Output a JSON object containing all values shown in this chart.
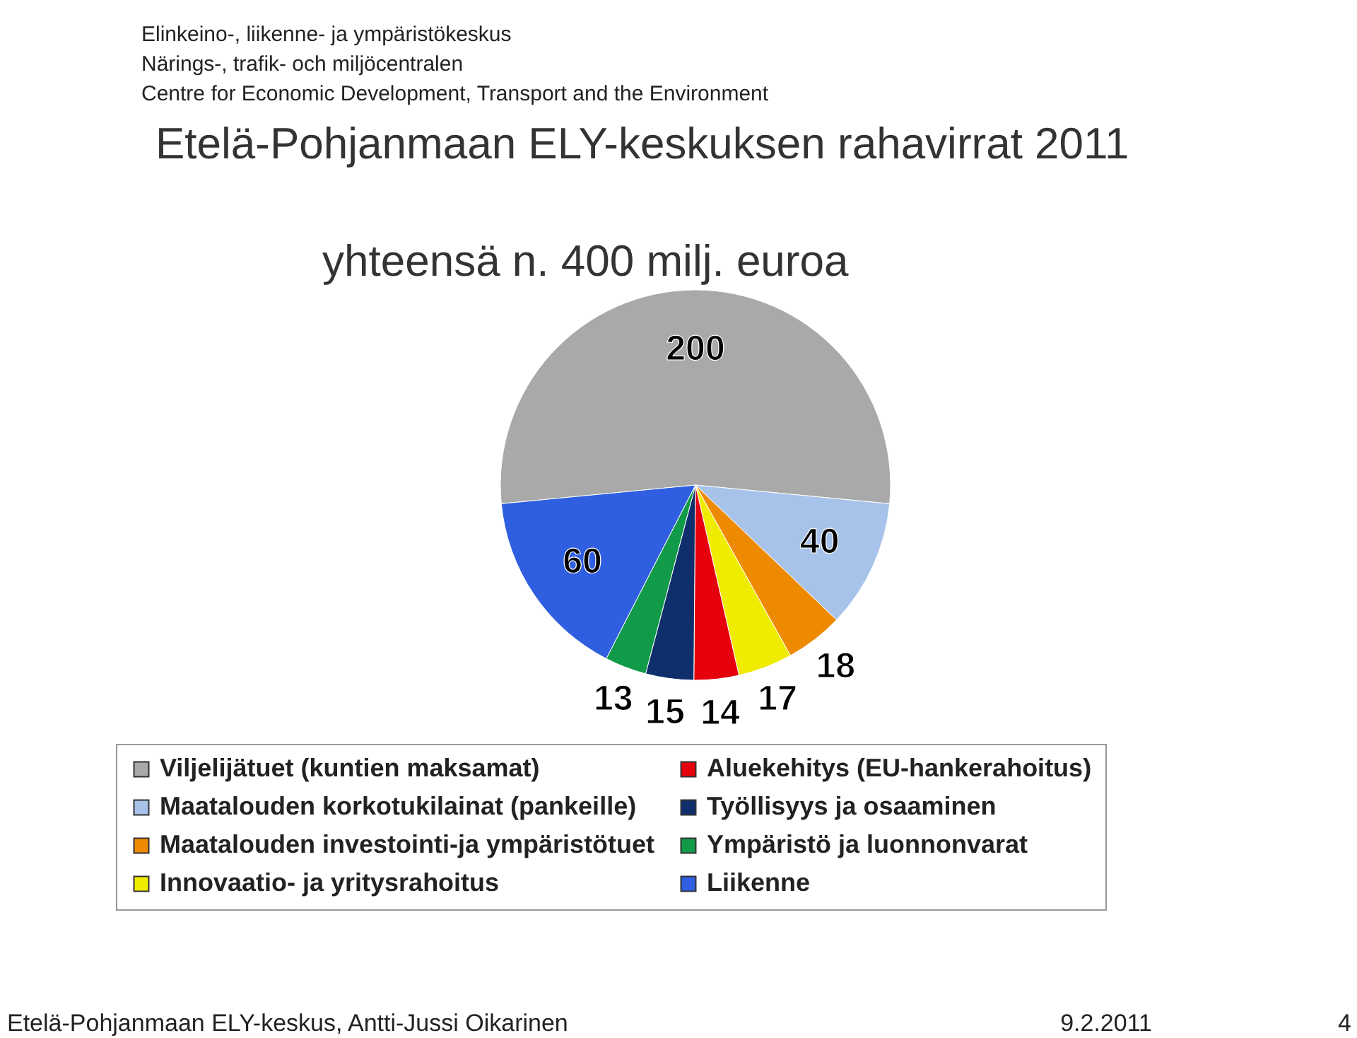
{
  "chart_data": {
    "type": "pie",
    "title": "Etelä-Pohjanmaan ELY-keskuksen rahavirrat 2011",
    "subtitle": "yhteensä n. 400 milj. euroa",
    "categories": [
      "Viljelijätuet (kuntien maksamat)",
      "Maatalouden korkotukilainat (pankeille)",
      "Maatalouden investointi-ja ympäristötuet",
      "Innovaatio- ja yritysrahoitus",
      "Aluekehitys (EU-hankerahoitus)",
      "Työllisyys ja osaaminen",
      "Ympäristö ja luonnonvarat",
      "Liikenne"
    ],
    "values": [
      200,
      40,
      18,
      17,
      14,
      15,
      13,
      60
    ],
    "colors": [
      "#a9a9a9",
      "#a7c3ea",
      "#ee8a00",
      "#f0ec00",
      "#e5000c",
      "#0e2f6c",
      "#119a48",
      "#2f5fe0"
    ],
    "data_labels": true,
    "legend": "bottom",
    "annotations": [
      "Elinkeino-, liikenne- ja ympäristökeskus",
      "Närings-, trafik- och miljöcentralen",
      "Centre for Economic Development, Transport and the Environment",
      "Etelä-Pohjanmaan ELY-keskus, Antti-Jussi Oikarinen",
      "9.2.2011",
      "4"
    ]
  }
}
